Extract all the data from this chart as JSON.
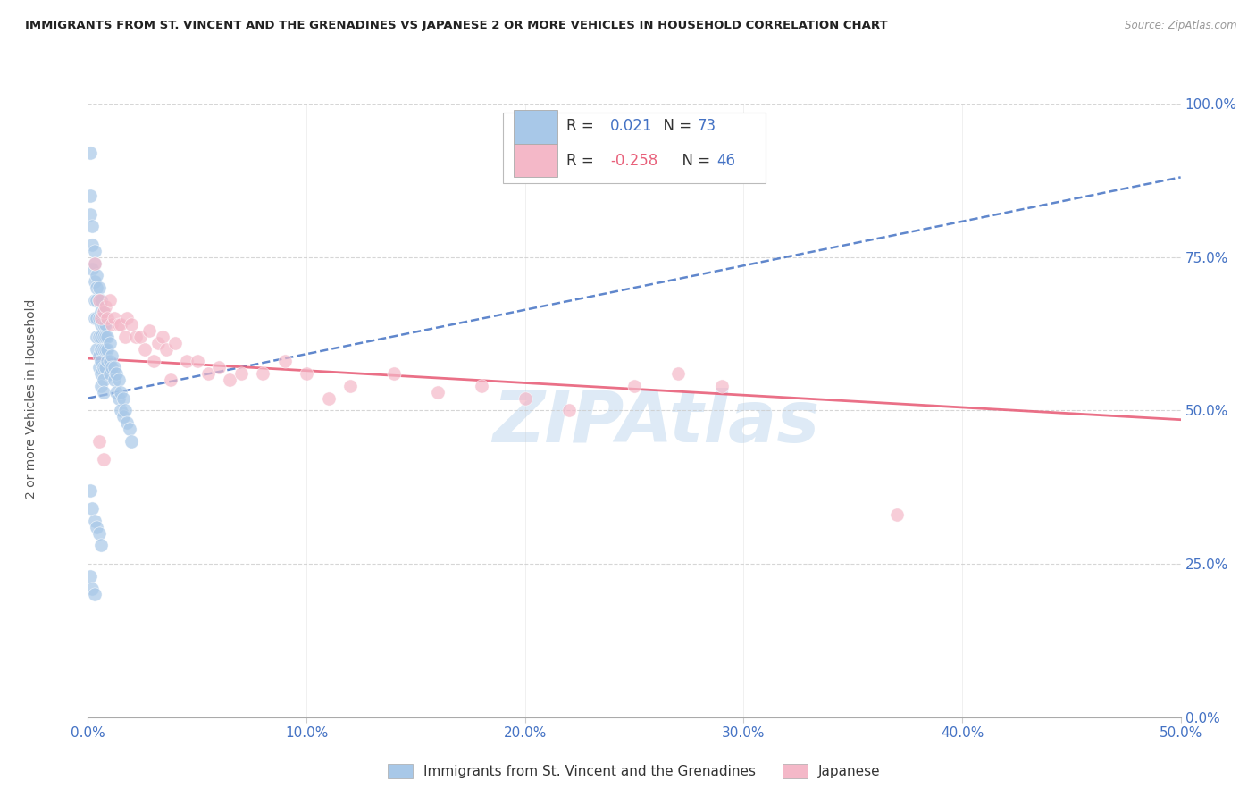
{
  "title": "IMMIGRANTS FROM ST. VINCENT AND THE GRENADINES VS JAPANESE 2 OR MORE VEHICLES IN HOUSEHOLD CORRELATION CHART",
  "source": "Source: ZipAtlas.com",
  "ylabel_label": "2 or more Vehicles in Household",
  "legend_label1": "Immigrants from St. Vincent and the Grenadines",
  "legend_label2": "Japanese",
  "R1": 0.021,
  "N1": 73,
  "R2": -0.258,
  "N2": 46,
  "blue_color": "#a8c8e8",
  "pink_color": "#f4b8c8",
  "blue_line_color": "#4472c4",
  "pink_line_color": "#e8607a",
  "watermark": "ZIPAtlas",
  "watermark_color": "#c8ddf0",
  "xlim": [
    0.0,
    0.5
  ],
  "ylim": [
    0.0,
    1.0
  ],
  "blue_line_x0": 0.0,
  "blue_line_y0": 0.52,
  "blue_line_x1": 0.5,
  "blue_line_y1": 0.88,
  "pink_line_x0": 0.0,
  "pink_line_y0": 0.585,
  "pink_line_x1": 0.5,
  "pink_line_y1": 0.485,
  "blue_dots_x": [
    0.001,
    0.001,
    0.001,
    0.002,
    0.002,
    0.002,
    0.003,
    0.003,
    0.003,
    0.003,
    0.003,
    0.004,
    0.004,
    0.004,
    0.004,
    0.004,
    0.004,
    0.005,
    0.005,
    0.005,
    0.005,
    0.005,
    0.005,
    0.006,
    0.006,
    0.006,
    0.006,
    0.006,
    0.006,
    0.006,
    0.006,
    0.007,
    0.007,
    0.007,
    0.007,
    0.007,
    0.007,
    0.007,
    0.008,
    0.008,
    0.008,
    0.008,
    0.009,
    0.009,
    0.009,
    0.01,
    0.01,
    0.01,
    0.011,
    0.011,
    0.012,
    0.012,
    0.013,
    0.013,
    0.014,
    0.014,
    0.015,
    0.015,
    0.016,
    0.016,
    0.017,
    0.018,
    0.019,
    0.02,
    0.001,
    0.002,
    0.003,
    0.004,
    0.005,
    0.006,
    0.001,
    0.002,
    0.003
  ],
  "blue_dots_y": [
    0.92,
    0.85,
    0.82,
    0.8,
    0.77,
    0.73,
    0.76,
    0.74,
    0.71,
    0.68,
    0.65,
    0.72,
    0.7,
    0.68,
    0.65,
    0.62,
    0.6,
    0.7,
    0.68,
    0.65,
    0.62,
    0.59,
    0.57,
    0.68,
    0.66,
    0.64,
    0.62,
    0.6,
    0.58,
    0.56,
    0.54,
    0.66,
    0.64,
    0.62,
    0.6,
    0.57,
    0.55,
    0.53,
    0.64,
    0.62,
    0.6,
    0.57,
    0.62,
    0.6,
    0.58,
    0.61,
    0.58,
    0.56,
    0.59,
    0.57,
    0.57,
    0.55,
    0.56,
    0.53,
    0.55,
    0.52,
    0.53,
    0.5,
    0.52,
    0.49,
    0.5,
    0.48,
    0.47,
    0.45,
    0.37,
    0.34,
    0.32,
    0.31,
    0.3,
    0.28,
    0.23,
    0.21,
    0.2
  ],
  "pink_dots_x": [
    0.003,
    0.005,
    0.006,
    0.007,
    0.008,
    0.009,
    0.01,
    0.011,
    0.012,
    0.014,
    0.015,
    0.017,
    0.018,
    0.02,
    0.022,
    0.024,
    0.026,
    0.028,
    0.03,
    0.032,
    0.034,
    0.036,
    0.038,
    0.04,
    0.045,
    0.05,
    0.055,
    0.06,
    0.065,
    0.07,
    0.08,
    0.09,
    0.1,
    0.11,
    0.12,
    0.14,
    0.16,
    0.18,
    0.2,
    0.22,
    0.25,
    0.27,
    0.29,
    0.37,
    0.005,
    0.007
  ],
  "pink_dots_y": [
    0.74,
    0.68,
    0.65,
    0.66,
    0.67,
    0.65,
    0.68,
    0.64,
    0.65,
    0.64,
    0.64,
    0.62,
    0.65,
    0.64,
    0.62,
    0.62,
    0.6,
    0.63,
    0.58,
    0.61,
    0.62,
    0.6,
    0.55,
    0.61,
    0.58,
    0.58,
    0.56,
    0.57,
    0.55,
    0.56,
    0.56,
    0.58,
    0.56,
    0.52,
    0.54,
    0.56,
    0.53,
    0.54,
    0.52,
    0.5,
    0.54,
    0.56,
    0.54,
    0.33,
    0.45,
    0.42
  ]
}
